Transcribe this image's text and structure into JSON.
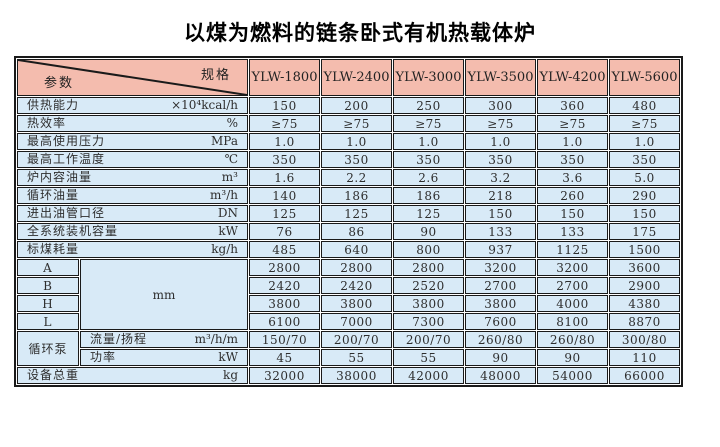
{
  "title": "以煤为燃料的链条卧式有机热载体炉",
  "colors": {
    "header_bg": "#f4bcae",
    "body_bg": "#d8eaf7",
    "border": "#1a1a1a",
    "text": "#2e2e2e"
  },
  "table": {
    "corner": {
      "spec_label": "规格",
      "param_label": "参数"
    },
    "models": [
      "YLW-1800",
      "YLW-2400",
      "YLW-3000",
      "YLW-3500",
      "YLW-4200",
      "YLW-5600"
    ],
    "param_rows": [
      {
        "label": "供热能力",
        "unit": "×10⁴kcal/h",
        "values": [
          "150",
          "200",
          "250",
          "300",
          "360",
          "480"
        ]
      },
      {
        "label": "热效率",
        "unit": "%",
        "values": [
          "≥75",
          "≥75",
          "≥75",
          "≥75",
          "≥75",
          "≥75"
        ]
      },
      {
        "label": "最高使用压力",
        "unit": "MPa",
        "values": [
          "1.0",
          "1.0",
          "1.0",
          "1.0",
          "1.0",
          "1.0"
        ]
      },
      {
        "label": "最高工作温度",
        "unit": "℃",
        "values": [
          "350",
          "350",
          "350",
          "350",
          "350",
          "350"
        ]
      },
      {
        "label": "炉内容油量",
        "unit": "m³",
        "values": [
          "1.6",
          "2.2",
          "2.6",
          "3.2",
          "3.6",
          "5.0"
        ]
      },
      {
        "label": "循环油量",
        "unit": "m³/h",
        "values": [
          "140",
          "186",
          "186",
          "218",
          "260",
          "290"
        ]
      },
      {
        "label": "进出油管口径",
        "unit": "DN",
        "values": [
          "125",
          "125",
          "125",
          "150",
          "150",
          "150"
        ]
      },
      {
        "label": "全系统装机容量",
        "unit": "kW",
        "values": [
          "76",
          "86",
          "90",
          "133",
          "133",
          "175"
        ]
      },
      {
        "label": "标煤耗量",
        "unit": "kg/h",
        "values": [
          "485",
          "640",
          "800",
          "937",
          "1125",
          "1500"
        ]
      }
    ],
    "dimension_group": {
      "unit": "mm",
      "rows": [
        {
          "label": "A",
          "values": [
            "2800",
            "2800",
            "2800",
            "3200",
            "3200",
            "3600"
          ]
        },
        {
          "label": "B",
          "values": [
            "2420",
            "2420",
            "2520",
            "2700",
            "2700",
            "2900"
          ]
        },
        {
          "label": "H",
          "values": [
            "3800",
            "3800",
            "3800",
            "3800",
            "4000",
            "4380"
          ]
        },
        {
          "label": "L",
          "values": [
            "6100",
            "7000",
            "7300",
            "7600",
            "8100",
            "8870"
          ]
        }
      ]
    },
    "pump_group": {
      "label": "循环泵",
      "rows": [
        {
          "label": "流量/扬程",
          "unit": "m³/h/m",
          "values": [
            "150/70",
            "200/70",
            "200/70",
            "260/80",
            "260/80",
            "300/80"
          ]
        },
        {
          "label": "功率",
          "unit": "kW",
          "values": [
            "45",
            "55",
            "55",
            "90",
            "90",
            "110"
          ]
        }
      ]
    },
    "total_row": {
      "label": "设备总重",
      "unit": "kg",
      "values": [
        "32000",
        "38000",
        "42000",
        "48000",
        "54000",
        "66000"
      ]
    }
  }
}
